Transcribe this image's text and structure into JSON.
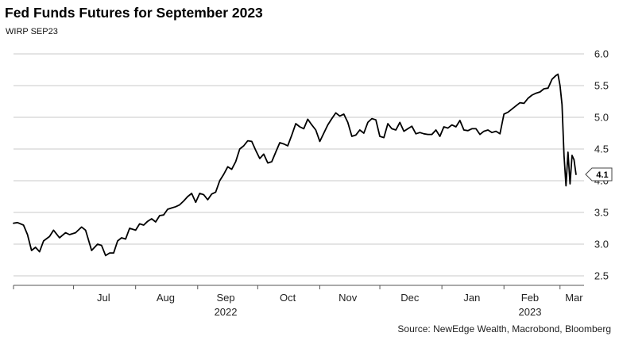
{
  "chart_data": {
    "type": "line",
    "title": "Fed Funds Futures for September 2023",
    "subtitle": "WIRP SEP23",
    "source": "Source: NewEdge Wealth, Macrobond, Bloomberg",
    "xlabel": "",
    "ylabel": "",
    "x_axis": {
      "range": [
        "2022-06-01",
        "2023-03-13"
      ],
      "month_labels": [
        {
          "label": "Jul",
          "date": "2022-07-16"
        },
        {
          "label": "Aug",
          "date": "2022-08-16"
        },
        {
          "label": "Sep",
          "date": "2022-09-15"
        },
        {
          "label": "Oct",
          "date": "2022-10-16"
        },
        {
          "label": "Nov",
          "date": "2022-11-15"
        },
        {
          "label": "Dec",
          "date": "2022-12-16"
        },
        {
          "label": "Jan",
          "date": "2023-01-16"
        },
        {
          "label": "Feb",
          "date": "2023-02-14"
        },
        {
          "label": "Mar",
          "date": "2023-03-08"
        }
      ],
      "year_labels": [
        {
          "label": "2022",
          "date": "2022-09-15"
        },
        {
          "label": "2023",
          "date": "2023-02-14"
        }
      ],
      "month_ticks": [
        "2022-06-01",
        "2022-07-01",
        "2022-08-01",
        "2022-09-01",
        "2022-10-01",
        "2022-11-01",
        "2022-12-01",
        "2023-01-01",
        "2023-02-01",
        "2023-03-01"
      ]
    },
    "y_axis": {
      "position": "right",
      "ylim": [
        2.35,
        6.1
      ],
      "ticks": [
        2.5,
        3.0,
        3.5,
        4.0,
        4.5,
        5.0,
        5.5,
        6.0
      ],
      "tick_labels": [
        "2.5",
        "3.0",
        "3.5",
        "4.0",
        "4.5",
        "5.0",
        "5.5",
        "6.0"
      ]
    },
    "grid": "horizontal",
    "last_value_label": "4.1",
    "series": [
      {
        "color": "#000000",
        "points": [
          [
            "2022-06-01",
            3.33
          ],
          [
            "2022-06-03",
            3.34
          ],
          [
            "2022-06-06",
            3.3
          ],
          [
            "2022-06-08",
            3.15
          ],
          [
            "2022-06-10",
            2.9
          ],
          [
            "2022-06-12",
            2.95
          ],
          [
            "2022-06-14",
            2.88
          ],
          [
            "2022-06-16",
            3.05
          ],
          [
            "2022-06-19",
            3.12
          ],
          [
            "2022-06-21",
            3.22
          ],
          [
            "2022-06-24",
            3.1
          ],
          [
            "2022-06-27",
            3.18
          ],
          [
            "2022-06-29",
            3.15
          ],
          [
            "2022-07-02",
            3.18
          ],
          [
            "2022-07-05",
            3.27
          ],
          [
            "2022-07-07",
            3.22
          ],
          [
            "2022-07-10",
            2.9
          ],
          [
            "2022-07-13",
            3.0
          ],
          [
            "2022-07-15",
            2.98
          ],
          [
            "2022-07-17",
            2.82
          ],
          [
            "2022-07-19",
            2.86
          ],
          [
            "2022-07-21",
            2.86
          ],
          [
            "2022-07-23",
            3.05
          ],
          [
            "2022-07-25",
            3.1
          ],
          [
            "2022-07-27",
            3.08
          ],
          [
            "2022-07-29",
            3.25
          ],
          [
            "2022-08-01",
            3.22
          ],
          [
            "2022-08-03",
            3.32
          ],
          [
            "2022-08-05",
            3.3
          ],
          [
            "2022-08-07",
            3.36
          ],
          [
            "2022-08-09",
            3.4
          ],
          [
            "2022-08-11",
            3.35
          ],
          [
            "2022-08-13",
            3.45
          ],
          [
            "2022-08-15",
            3.46
          ],
          [
            "2022-08-17",
            3.55
          ],
          [
            "2022-08-19",
            3.57
          ],
          [
            "2022-08-21",
            3.59
          ],
          [
            "2022-08-23",
            3.62
          ],
          [
            "2022-08-25",
            3.68
          ],
          [
            "2022-08-27",
            3.75
          ],
          [
            "2022-08-29",
            3.8
          ],
          [
            "2022-08-31",
            3.66
          ],
          [
            "2022-09-02",
            3.8
          ],
          [
            "2022-09-04",
            3.78
          ],
          [
            "2022-09-06",
            3.7
          ],
          [
            "2022-09-08",
            3.79
          ],
          [
            "2022-09-10",
            3.82
          ],
          [
            "2022-09-12",
            4.0
          ],
          [
            "2022-09-14",
            4.1
          ],
          [
            "2022-09-16",
            4.22
          ],
          [
            "2022-09-18",
            4.18
          ],
          [
            "2022-09-20",
            4.3
          ],
          [
            "2022-09-22",
            4.5
          ],
          [
            "2022-09-24",
            4.55
          ],
          [
            "2022-09-26",
            4.63
          ],
          [
            "2022-09-28",
            4.62
          ],
          [
            "2022-09-30",
            4.48
          ],
          [
            "2022-10-02",
            4.35
          ],
          [
            "2022-10-04",
            4.42
          ],
          [
            "2022-10-06",
            4.28
          ],
          [
            "2022-10-08",
            4.3
          ],
          [
            "2022-10-10",
            4.45
          ],
          [
            "2022-10-12",
            4.6
          ],
          [
            "2022-10-14",
            4.58
          ],
          [
            "2022-10-16",
            4.55
          ],
          [
            "2022-10-18",
            4.72
          ],
          [
            "2022-10-20",
            4.9
          ],
          [
            "2022-10-22",
            4.85
          ],
          [
            "2022-10-24",
            4.82
          ],
          [
            "2022-10-26",
            4.97
          ],
          [
            "2022-10-28",
            4.88
          ],
          [
            "2022-10-30",
            4.8
          ],
          [
            "2022-11-01",
            4.62
          ],
          [
            "2022-11-03",
            4.75
          ],
          [
            "2022-11-05",
            4.88
          ],
          [
            "2022-11-07",
            4.98
          ],
          [
            "2022-11-09",
            5.07
          ],
          [
            "2022-11-11",
            5.02
          ],
          [
            "2022-11-13",
            5.05
          ],
          [
            "2022-11-15",
            4.92
          ],
          [
            "2022-11-17",
            4.7
          ],
          [
            "2022-11-19",
            4.72
          ],
          [
            "2022-11-21",
            4.8
          ],
          [
            "2022-11-23",
            4.75
          ],
          [
            "2022-11-25",
            4.92
          ],
          [
            "2022-11-27",
            4.98
          ],
          [
            "2022-11-29",
            4.96
          ],
          [
            "2022-12-01",
            4.7
          ],
          [
            "2022-12-03",
            4.68
          ],
          [
            "2022-12-05",
            4.9
          ],
          [
            "2022-12-07",
            4.82
          ],
          [
            "2022-12-09",
            4.8
          ],
          [
            "2022-12-11",
            4.92
          ],
          [
            "2022-12-13",
            4.78
          ],
          [
            "2022-12-15",
            4.82
          ],
          [
            "2022-12-17",
            4.86
          ],
          [
            "2022-12-19",
            4.74
          ],
          [
            "2022-12-21",
            4.76
          ],
          [
            "2022-12-23",
            4.74
          ],
          [
            "2022-12-25",
            4.73
          ],
          [
            "2022-12-27",
            4.73
          ],
          [
            "2022-12-29",
            4.8
          ],
          [
            "2022-12-31",
            4.7
          ],
          [
            "2023-01-02",
            4.85
          ],
          [
            "2023-01-04",
            4.83
          ],
          [
            "2023-01-06",
            4.88
          ],
          [
            "2023-01-08",
            4.85
          ],
          [
            "2023-01-10",
            4.95
          ],
          [
            "2023-01-12",
            4.8
          ],
          [
            "2023-01-14",
            4.79
          ],
          [
            "2023-01-16",
            4.82
          ],
          [
            "2023-01-18",
            4.82
          ],
          [
            "2023-01-20",
            4.73
          ],
          [
            "2023-01-22",
            4.78
          ],
          [
            "2023-01-24",
            4.8
          ],
          [
            "2023-01-26",
            4.76
          ],
          [
            "2023-01-28",
            4.78
          ],
          [
            "2023-01-30",
            4.74
          ],
          [
            "2023-02-01",
            5.05
          ],
          [
            "2023-02-03",
            5.08
          ],
          [
            "2023-02-05",
            5.13
          ],
          [
            "2023-02-07",
            5.18
          ],
          [
            "2023-02-09",
            5.23
          ],
          [
            "2023-02-11",
            5.22
          ],
          [
            "2023-02-13",
            5.3
          ],
          [
            "2023-02-15",
            5.35
          ],
          [
            "2023-02-17",
            5.38
          ],
          [
            "2023-02-19",
            5.4
          ],
          [
            "2023-02-21",
            5.45
          ],
          [
            "2023-02-23",
            5.46
          ],
          [
            "2023-02-25",
            5.6
          ],
          [
            "2023-02-27",
            5.66
          ],
          [
            "2023-02-28",
            5.68
          ],
          [
            "2023-03-01",
            5.5
          ],
          [
            "2023-03-02",
            5.2
          ],
          [
            "2023-03-03",
            4.4
          ],
          [
            "2023-03-04",
            3.92
          ],
          [
            "2023-03-05",
            4.45
          ],
          [
            "2023-03-06",
            3.95
          ],
          [
            "2023-03-07",
            4.4
          ],
          [
            "2023-03-08",
            4.33
          ],
          [
            "2023-03-09",
            4.1
          ]
        ]
      }
    ]
  }
}
